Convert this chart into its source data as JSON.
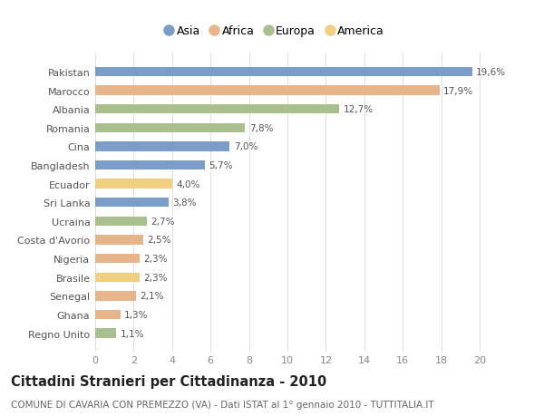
{
  "countries": [
    "Pakistan",
    "Marocco",
    "Albania",
    "Romania",
    "Cina",
    "Bangladesh",
    "Ecuador",
    "Sri Lanka",
    "Ucraina",
    "Costa d'Avorio",
    "Nigeria",
    "Brasile",
    "Senegal",
    "Ghana",
    "Regno Unito"
  ],
  "values": [
    19.6,
    17.9,
    12.7,
    7.8,
    7.0,
    5.7,
    4.0,
    3.8,
    2.7,
    2.5,
    2.3,
    2.3,
    2.1,
    1.3,
    1.1
  ],
  "labels": [
    "19,6%",
    "17,9%",
    "12,7%",
    "7,8%",
    "7,0%",
    "5,7%",
    "4,0%",
    "3,8%",
    "2,7%",
    "2,5%",
    "2,3%",
    "2,3%",
    "2,1%",
    "1,3%",
    "1,1%"
  ],
  "continents": [
    "Asia",
    "Africa",
    "Europa",
    "Europa",
    "Asia",
    "Asia",
    "America",
    "Asia",
    "Europa",
    "Africa",
    "Africa",
    "America",
    "Africa",
    "Africa",
    "Europa"
  ],
  "colors": {
    "Asia": "#7b9dc9",
    "Africa": "#e8b48a",
    "Europa": "#aabf8e",
    "America": "#f0d080"
  },
  "legend_order": [
    "Asia",
    "Africa",
    "Europa",
    "America"
  ],
  "title": "Cittadini Stranieri per Cittadinanza - 2010",
  "subtitle": "COMUNE DI CAVARIA CON PREMEZZO (VA) - Dati ISTAT al 1° gennaio 2010 - TUTTITALIA.IT",
  "xlim_max": 20,
  "xticks": [
    0,
    2,
    4,
    6,
    8,
    10,
    12,
    14,
    16,
    18,
    20
  ],
  "bg_color": "#ffffff",
  "grid_color": "#e0e0e0",
  "bar_height": 0.5,
  "title_fontsize": 10.5,
  "subtitle_fontsize": 7.5,
  "label_fontsize": 7.5,
  "tick_fontsize": 8,
  "legend_fontsize": 9
}
